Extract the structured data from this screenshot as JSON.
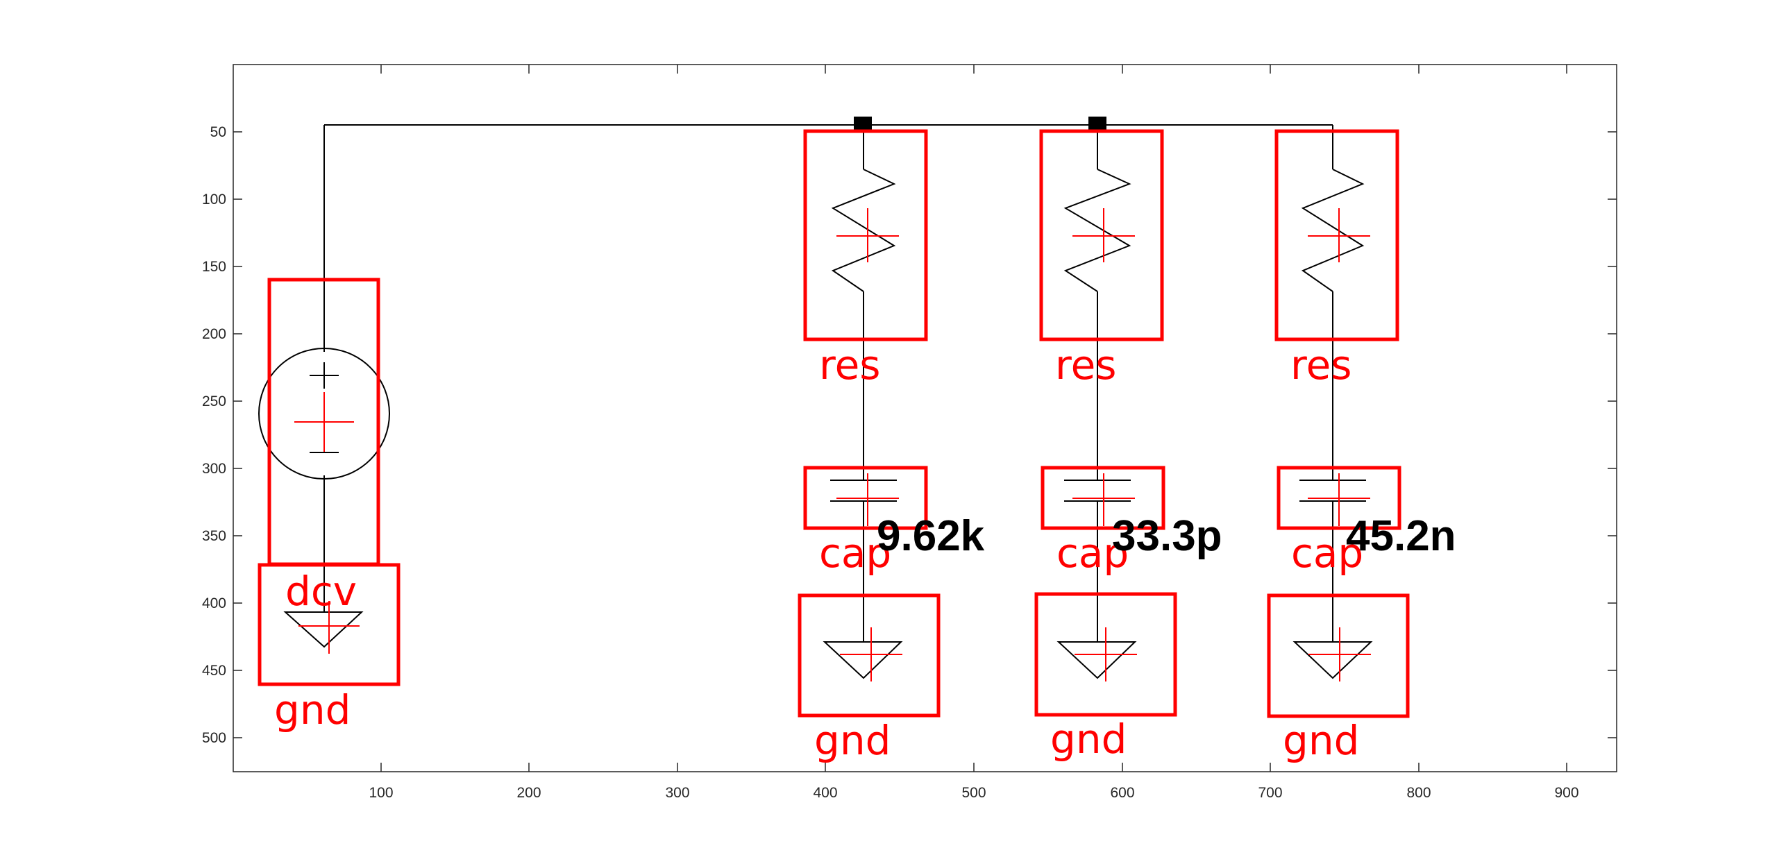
{
  "colors": {
    "wire": "#000000",
    "detection": "#ff0000",
    "axis": "#262626",
    "background": "#ffffff"
  },
  "axes": {
    "x_range": [
      0,
      930
    ],
    "y_range": [
      5,
      530
    ],
    "x_ticks": [
      "100",
      "200",
      "300",
      "400",
      "500",
      "600",
      "700",
      "800",
      "900"
    ],
    "y_ticks": [
      "50",
      "100",
      "150",
      "200",
      "250",
      "300",
      "350",
      "400",
      "450",
      "500"
    ]
  },
  "components": {
    "source_label": "dcv",
    "resistor_labels": [
      "res",
      "res",
      "res"
    ],
    "capacitor_labels": [
      "cap",
      "cap",
      "cap"
    ],
    "ground_labels": [
      "gnd",
      "gnd",
      "gnd",
      "gnd"
    ]
  },
  "values": [
    "9.62k",
    "33.3p",
    "45.2n"
  ]
}
